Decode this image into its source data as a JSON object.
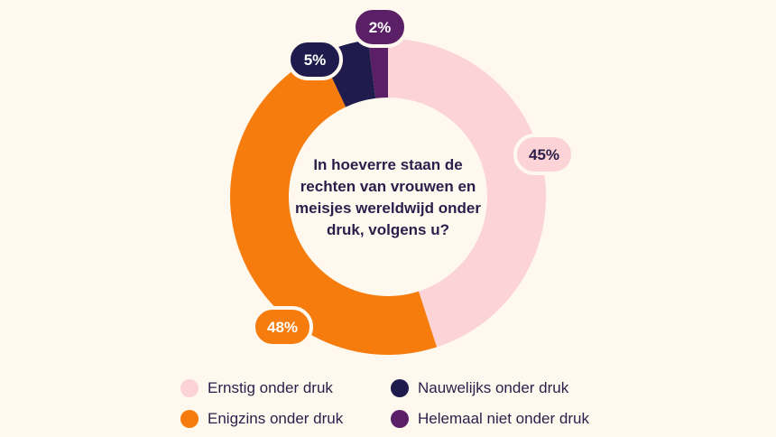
{
  "chart_data": {
    "type": "pie",
    "title": "In hoeverre staan de rechten van vrouwen en meisjes wereldwijd onder druk, volgens u?",
    "title_lines": [
      "In hoeverre staan de",
      "rechten van vrouwen en",
      "meisjes wereldwijd onder",
      "druk, volgens u?"
    ],
    "donut": true,
    "unit": "%",
    "slices": [
      {
        "label": "Ernstig onder druk",
        "value": 45,
        "display": "45%",
        "color": "#fcd3d6",
        "text_color": "#2a1f4a"
      },
      {
        "label": "Enigzins onder druk",
        "value": 48,
        "display": "48%",
        "color": "#f57c0d",
        "text_color": "#ffffff"
      },
      {
        "label": "Nauwelijks onder druk",
        "value": 5,
        "display": "5%",
        "color": "#1f1b4d",
        "text_color": "#ffffff"
      },
      {
        "label": "Helemaal niet onder druk",
        "value": 2,
        "display": "2%",
        "color": "#5a1f66",
        "text_color": "#ffffff"
      }
    ],
    "legend": {
      "placement": "bottom",
      "order": [
        0,
        2,
        1,
        3
      ]
    }
  }
}
